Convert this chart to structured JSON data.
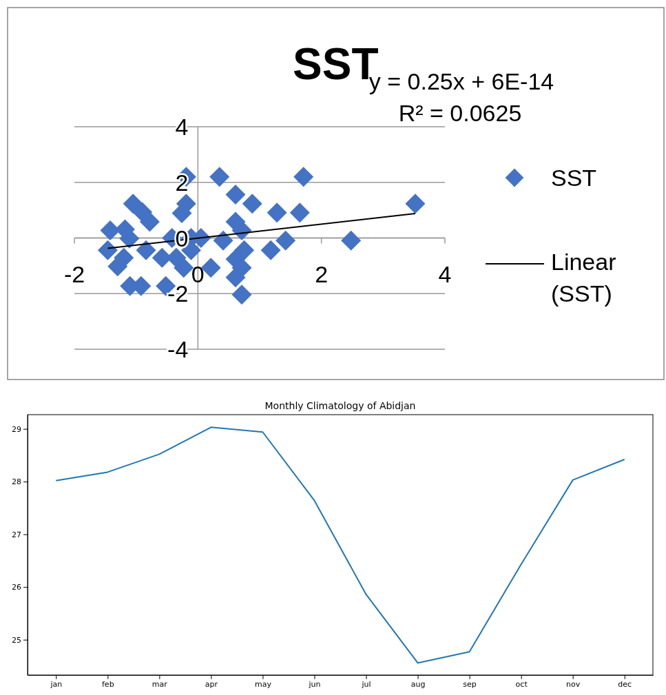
{
  "chart_data": [
    {
      "type": "scatter",
      "title": "SST",
      "annotations": [
        "y = 0.25x + 6E-14",
        "R² = 0.0625"
      ],
      "xlim": [
        -2,
        4
      ],
      "ylim": [
        -4,
        4
      ],
      "xticks": [
        -2,
        0,
        2,
        4
      ],
      "yticks": [
        -4,
        -2,
        0,
        2,
        4
      ],
      "grid": "y",
      "legend": "right",
      "marker": "diamond",
      "series": [
        {
          "name": "SST",
          "type": "scatter",
          "color": "#4472c4",
          "x": [
            -0.19,
            0.35,
            1.71,
            0.61,
            0.88,
            3.52,
            1.28,
            1.65,
            -1.05,
            -0.9,
            -0.78,
            -0.19,
            -0.26,
            -1.42,
            -1.18,
            -1.11,
            -1.46,
            -0.84,
            -1.2,
            -1.3,
            -1.1,
            -0.92,
            -0.52,
            -0.58,
            -0.23,
            0.21,
            -0.42,
            -0.11,
            0.05,
            -0.11,
            0.41,
            0.61,
            0.71,
            0.75,
            0.61,
            0.71,
            0.61,
            0.71,
            1.18,
            1.42,
            2.48,
            -0.35
          ],
          "values": [
            2.2,
            2.2,
            2.2,
            1.56,
            1.23,
            1.23,
            0.91,
            0.91,
            1.23,
            0.93,
            0.58,
            1.23,
            0.89,
            0.27,
            0.31,
            -0.02,
            -0.44,
            -0.44,
            -0.71,
            -1.02,
            -1.73,
            -1.73,
            -1.73,
            -0.71,
            -1.07,
            -1.07,
            0,
            0,
            0,
            -0.44,
            -0.09,
            0.58,
            0.27,
            -0.44,
            -0.76,
            -1.07,
            -1.42,
            -2.04,
            -0.44,
            -0.09,
            -0.09,
            -0.71
          ]
        },
        {
          "name": "Linear (SST)",
          "type": "line",
          "color": "#000000",
          "marker": "none",
          "x": [
            -1.46,
            3.52
          ],
          "values": [
            -0.37,
            0.88
          ]
        }
      ]
    },
    {
      "type": "line",
      "title": "Monthly Climatology of Abidjan",
      "categories": [
        "jan",
        "feb",
        "mar",
        "apr",
        "may",
        "jun",
        "jul",
        "aug",
        "sep",
        "oct",
        "nov",
        "dec"
      ],
      "ylim": [
        24.33,
        29.27
      ],
      "yticks": [
        25,
        26,
        27,
        28,
        29
      ],
      "grid": false,
      "legend": false,
      "series": [
        {
          "color": "#1f77b4",
          "values": [
            28.02,
            28.18,
            28.52,
            29.03,
            28.94,
            27.64,
            25.86,
            24.56,
            24.77,
            26.43,
            28.03,
            28.42
          ]
        }
      ]
    }
  ]
}
